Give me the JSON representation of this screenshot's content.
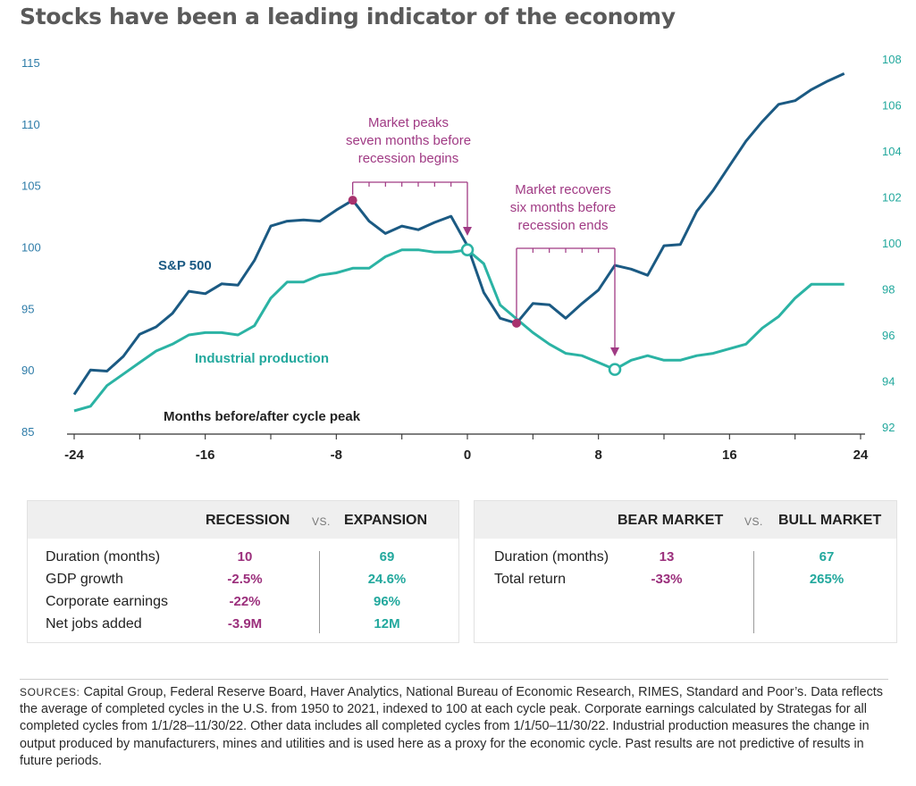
{
  "title": "Stocks have been a leading indicator of the economy",
  "chart_data": {
    "type": "line",
    "xlabel": "Months before/after cycle peak",
    "x_ticks": [
      -24,
      -16,
      -8,
      0,
      8,
      16,
      24
    ],
    "left_axis": {
      "ylim": [
        85,
        115
      ],
      "ticks": [
        85,
        90,
        95,
        100,
        105,
        110,
        115
      ]
    },
    "right_axis": {
      "ylim": [
        92,
        108
      ],
      "ticks": [
        92,
        94,
        96,
        98,
        100,
        102,
        104,
        106,
        108
      ]
    },
    "grid": false,
    "series": [
      {
        "name": "S&P 500",
        "axis": "left",
        "color": "#1b5a83",
        "points": [
          [
            -24,
            88.0
          ],
          [
            -23,
            90.0
          ],
          [
            -22,
            89.9
          ],
          [
            -21,
            91.1
          ],
          [
            -20,
            92.9
          ],
          [
            -19,
            93.5
          ],
          [
            -18,
            94.6
          ],
          [
            -17,
            96.4
          ],
          [
            -16,
            96.2
          ],
          [
            -15,
            97.0
          ],
          [
            -14,
            96.9
          ],
          [
            -13,
            98.9
          ],
          [
            -12,
            101.7
          ],
          [
            -11,
            102.1
          ],
          [
            -10,
            102.2
          ],
          [
            -9,
            102.1
          ],
          [
            -8,
            103.0
          ],
          [
            -7,
            103.8
          ],
          [
            -6,
            102.1
          ],
          [
            -5,
            101.1
          ],
          [
            -4,
            101.7
          ],
          [
            -3,
            101.4
          ],
          [
            -2,
            102.0
          ],
          [
            -1,
            102.5
          ],
          [
            0,
            100.1
          ],
          [
            1,
            96.3
          ],
          [
            2,
            94.2
          ],
          [
            3,
            93.8
          ],
          [
            4,
            95.4
          ],
          [
            5,
            95.3
          ],
          [
            6,
            94.2
          ],
          [
            7,
            95.4
          ],
          [
            8,
            96.5
          ],
          [
            9,
            98.5
          ],
          [
            10,
            98.2
          ],
          [
            11,
            97.7
          ],
          [
            12,
            100.1
          ],
          [
            13,
            100.2
          ],
          [
            14,
            102.9
          ],
          [
            15,
            104.6
          ],
          [
            16,
            106.6
          ],
          [
            17,
            108.6
          ],
          [
            18,
            110.2
          ],
          [
            19,
            111.6
          ],
          [
            20,
            111.9
          ],
          [
            21,
            112.8
          ],
          [
            22,
            113.5
          ],
          [
            23,
            114.1
          ]
        ]
      },
      {
        "name": "Industrial production",
        "axis": "right",
        "color": "#2bb3a4",
        "points": [
          [
            -24,
            92.7
          ],
          [
            -23,
            92.9
          ],
          [
            -22,
            93.8
          ],
          [
            -21,
            94.3
          ],
          [
            -20,
            94.8
          ],
          [
            -19,
            95.3
          ],
          [
            -18,
            95.6
          ],
          [
            -17,
            96.0
          ],
          [
            -16,
            96.1
          ],
          [
            -15,
            96.1
          ],
          [
            -14,
            96.0
          ],
          [
            -13,
            96.4
          ],
          [
            -12,
            97.6
          ],
          [
            -11,
            98.3
          ],
          [
            -10,
            98.3
          ],
          [
            -9,
            98.6
          ],
          [
            -8,
            98.7
          ],
          [
            -7,
            98.9
          ],
          [
            -6,
            98.9
          ],
          [
            -5,
            99.4
          ],
          [
            -4,
            99.7
          ],
          [
            -3,
            99.7
          ],
          [
            -2,
            99.6
          ],
          [
            -1,
            99.6
          ],
          [
            0,
            99.7
          ],
          [
            1,
            99.1
          ],
          [
            2,
            97.3
          ],
          [
            3,
            96.7
          ],
          [
            4,
            96.1
          ],
          [
            5,
            95.6
          ],
          [
            6,
            95.2
          ],
          [
            7,
            95.1
          ],
          [
            8,
            94.8
          ],
          [
            9,
            94.5
          ],
          [
            10,
            94.9
          ],
          [
            11,
            95.1
          ],
          [
            12,
            94.9
          ],
          [
            13,
            94.9
          ],
          [
            14,
            95.1
          ],
          [
            15,
            95.2
          ],
          [
            16,
            95.4
          ],
          [
            17,
            95.6
          ],
          [
            18,
            96.3
          ],
          [
            19,
            96.8
          ],
          [
            20,
            97.6
          ],
          [
            21,
            98.2
          ],
          [
            22,
            98.2
          ],
          [
            23,
            98.2
          ]
        ]
      }
    ],
    "series_labels": {
      "sp500": "S&P 500",
      "industrial": "Industrial production"
    },
    "annotations": {
      "peak": {
        "lines": [
          "Market peaks",
          "seven months before",
          "recession begins"
        ],
        "from_x": -7,
        "to_x": 0
      },
      "recovery": {
        "lines": [
          "Market recovers",
          "six months before",
          "recession ends"
        ],
        "from_x": 3,
        "to_x": 9
      }
    }
  },
  "recession_table": {
    "col1": "RECESSION",
    "vs": "VS.",
    "col2": "EXPANSION",
    "rows": [
      {
        "label": "Duration (months)",
        "v1": "10",
        "v2": "69"
      },
      {
        "label": "GDP growth",
        "v1": "-2.5%",
        "v2": "24.6%"
      },
      {
        "label": "Corporate earnings",
        "v1": "-22%",
        "v2": "96%"
      },
      {
        "label": "Net jobs added",
        "v1": "-3.9M",
        "v2": "12M"
      }
    ]
  },
  "market_table": {
    "col1": "BEAR MARKET",
    "vs": "VS.",
    "col2": "BULL MARKET",
    "rows": [
      {
        "label": "Duration (months)",
        "v1": "13",
        "v2": "67"
      },
      {
        "label": "Total return",
        "v1": "-33%",
        "v2": "265%"
      }
    ]
  },
  "sources": {
    "label": "SOURCES:",
    "text": "Capital Group, Federal Reserve Board, Haver Analytics, National Bureau of Economic Research, RIMES, Standard and Poor’s. Data reflects the average of completed cycles in the U.S. from 1950 to 2021, indexed to 100 at each cycle peak. Corporate earnings calculated by Strategas for all completed cycles from 1/1/28–11/30/22. Other data includes all completed cycles from 1/1/50–11/30/22. Industrial production measures the change in output produced by manufacturers, mines and utilities and is used here as a proxy for the economic cycle. Past results are not predictive of results in future periods."
  },
  "colors": {
    "navy": "#1b5a83",
    "teal": "#2bb3a4",
    "magenta": "#a03a84",
    "axis_text_left": "#2e7ca8",
    "axis_text_right": "#22a89d"
  }
}
